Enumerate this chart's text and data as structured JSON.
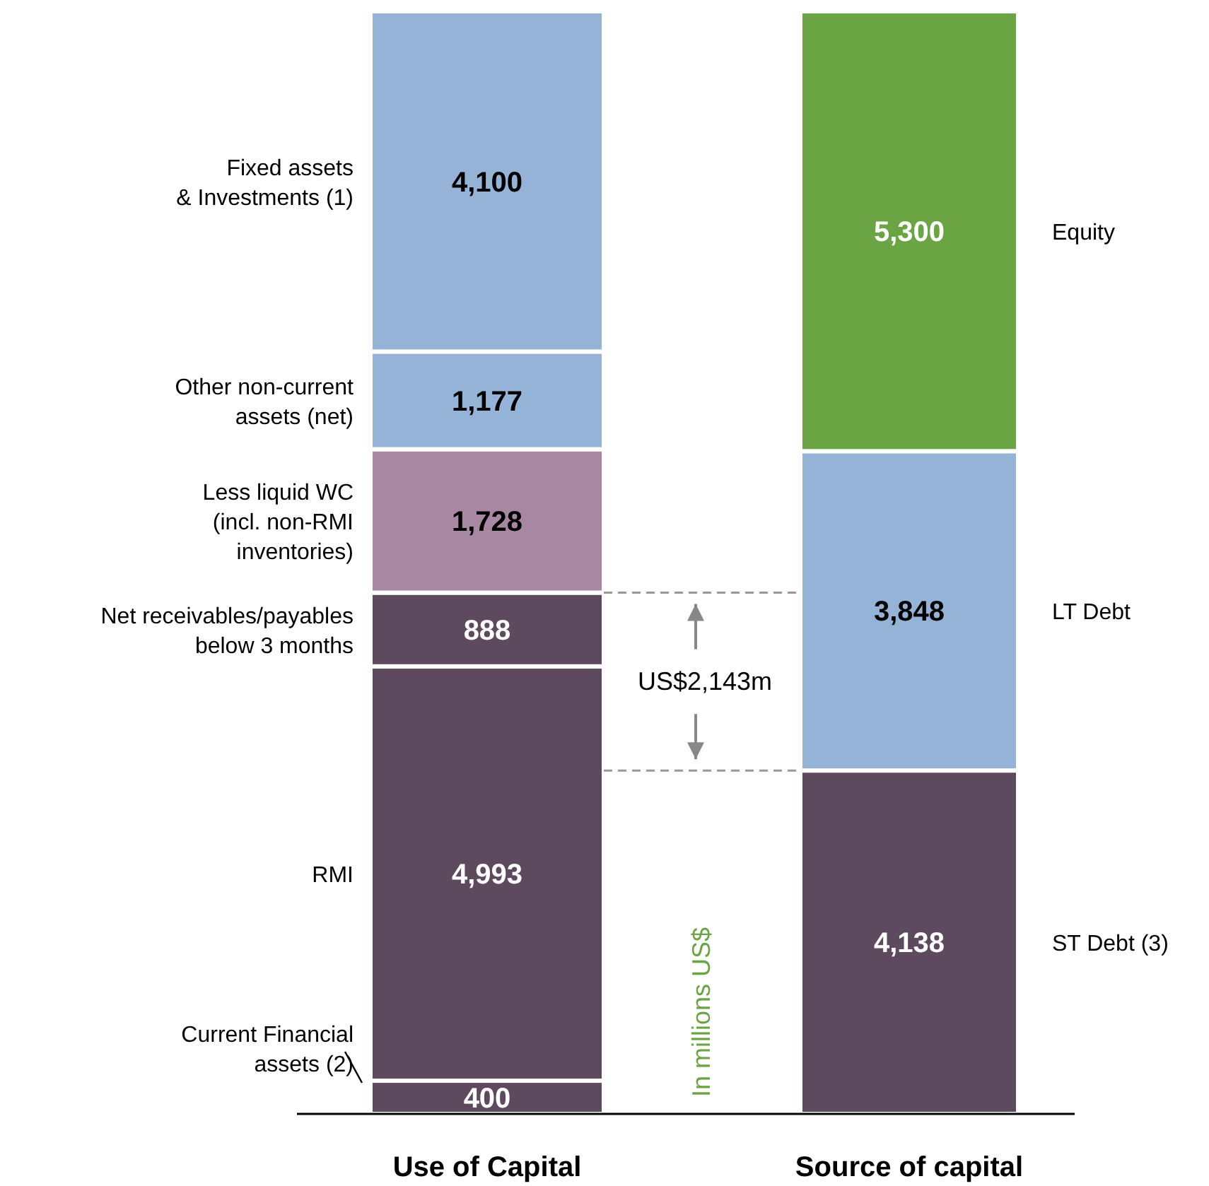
{
  "chart_data": {
    "type": "bar",
    "stacked": true,
    "categories": [
      "Use of Capital",
      "Source of capital"
    ],
    "ylabel": "In millions US$",
    "series": [
      {
        "name": "Current Financial\nassets (2)",
        "color": "#5e4a5e",
        "values": [
          400,
          null
        ],
        "value_labels": [
          "400",
          null
        ]
      },
      {
        "name": "RMI",
        "color": "#5e4a5e",
        "values": [
          4993,
          null
        ],
        "value_labels": [
          "4,993",
          null
        ]
      },
      {
        "name": "Net receivables/payables\nbelow 3 months",
        "color": "#5e4a5e",
        "values": [
          888,
          null
        ],
        "value_labels": [
          "888",
          null
        ]
      },
      {
        "name": "Less liquid WC\n(incl. non-RMI\ninventories)",
        "color": "#a887a3",
        "values": [
          1728,
          null
        ],
        "value_labels": [
          "1,728",
          null
        ]
      },
      {
        "name": "Other non-current\nassets (net)",
        "color": "#95b3d7",
        "values": [
          1177,
          null
        ],
        "value_labels": [
          "1,177",
          null
        ]
      },
      {
        "name": "Fixed assets\n& Investments (1)",
        "color": "#95b3d7",
        "values": [
          4100,
          null
        ],
        "value_labels": [
          "4,100",
          null
        ]
      },
      {
        "name": "ST Debt (3)",
        "color": "#5e4a5e",
        "values": [
          null,
          4138
        ],
        "value_labels": [
          null,
          "4,138"
        ]
      },
      {
        "name": "LT Debt",
        "color": "#95b3d7",
        "values": [
          null,
          3848
        ],
        "value_labels": [
          null,
          "3,848"
        ]
      },
      {
        "name": "Equity",
        "color": "#6aa443",
        "values": [
          null,
          5300
        ],
        "value_labels": [
          null,
          "5,300"
        ]
      }
    ],
    "ref_lines": [
      {
        "axis": "y",
        "value": 6281,
        "color": "#999999",
        "line_style": "dashed"
      },
      {
        "axis": "y",
        "value": 4138,
        "color": "#999999",
        "line_style": "dashed"
      }
    ],
    "annotations": [
      "US$2,143m"
    ]
  }
}
